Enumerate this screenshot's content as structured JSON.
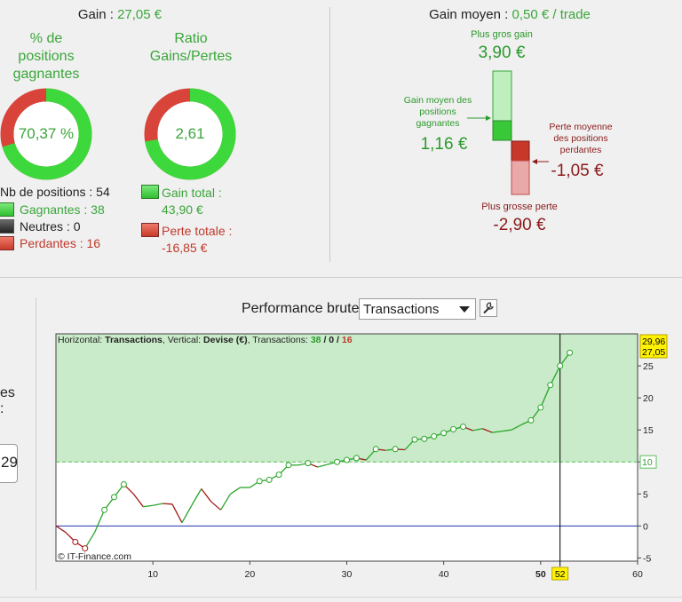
{
  "summary": {
    "gain_label": "Gain :",
    "gain_value": "27,05 €",
    "pct_title": "% de positions gagnantes",
    "pct_value": "70,37 %",
    "pct_fraction": 0.7037,
    "ratio_title": "Ratio Gains/Pertes",
    "ratio_value": "2,61",
    "ratio_fraction": 0.7229,
    "nb_positions": "Nb de positions : 54",
    "gagnantes": "Gagnantes : 38",
    "neutres": "Neutres : 0",
    "perdantes": "Perdantes : 16",
    "gain_total_label": "Gain total :",
    "gain_total_value": "43,90 €",
    "perte_totale_label": "Perte totale :",
    "perte_totale_value": "-16,85 €"
  },
  "average": {
    "title_label": "Gain moyen :",
    "title_value": "0,50 € / trade",
    "best_label": "Plus gros gain",
    "best_value": "3,90 €",
    "avg_gain_label_1": "Gain moyen des",
    "avg_gain_label_2": "positions",
    "avg_gain_label_3": "gagnantes",
    "avg_gain_value": "1,16 €",
    "avg_loss_label_1": "Perte moyenne",
    "avg_loss_label_2": "des positions",
    "avg_loss_label_3": "perdantes",
    "avg_loss_value": "-1,05 €",
    "worst_label": "Plus grosse perte",
    "worst_value": "-2,90 €"
  },
  "performance": {
    "title": "Performance brute",
    "selected": "Transactions",
    "left_text_1": "es",
    "left_text_2": ":",
    "left_input": "29"
  },
  "chart_data": {
    "type": "line",
    "info_h_label": "Horizontal:",
    "info_h_value": "Transactions",
    "info_v_label": ", Vertical:",
    "info_v_value": "Devise (€)",
    "info_t_label": ", Transactions:",
    "info_wins": "38",
    "info_sep1": "/",
    "info_neutral": "0",
    "info_sep2": "/",
    "info_losses": "16",
    "watermark": "© IT-Finance.com",
    "xlim": [
      0,
      60
    ],
    "ylim": [
      -5.5,
      30
    ],
    "x_ticks": [
      10,
      20,
      30,
      40,
      50,
      60
    ],
    "y_ticks": [
      -5,
      0,
      5,
      10,
      15,
      20,
      25
    ],
    "threshold": 10,
    "threshold_label": "10",
    "cursor_x": 52,
    "cursor_label": "52",
    "highlight_tick": "50",
    "y_badge_top": "29,96",
    "y_badge_current": "27,05",
    "points": [
      [
        0,
        0
      ],
      [
        1,
        -1
      ],
      [
        2,
        -2.5
      ],
      [
        3,
        -3.5
      ],
      [
        4,
        -1
      ],
      [
        5,
        2.5
      ],
      [
        6,
        4.5
      ],
      [
        7,
        6.5
      ],
      [
        8,
        5
      ],
      [
        9,
        3
      ],
      [
        10,
        3.2
      ],
      [
        11,
        3.5
      ],
      [
        12,
        3.4
      ],
      [
        13,
        0.5
      ],
      [
        14,
        3.2
      ],
      [
        15,
        5.8
      ],
      [
        16,
        3.8
      ],
      [
        17,
        2.5
      ],
      [
        18,
        5
      ],
      [
        19,
        6
      ],
      [
        20,
        6
      ],
      [
        21,
        7
      ],
      [
        22,
        7.2
      ],
      [
        23,
        8
      ],
      [
        24,
        9.5
      ],
      [
        25,
        9.5
      ],
      [
        26,
        9.8
      ],
      [
        27,
        9.2
      ],
      [
        28,
        9.6
      ],
      [
        29,
        10
      ],
      [
        30,
        10.3
      ],
      [
        31,
        10.6
      ],
      [
        32,
        10.3
      ],
      [
        33,
        12
      ],
      [
        34,
        11.8
      ],
      [
        35,
        12
      ],
      [
        36,
        11.9
      ],
      [
        37,
        13.5
      ],
      [
        38,
        13.6
      ],
      [
        39,
        14
      ],
      [
        40,
        14.5
      ],
      [
        41,
        15.1
      ],
      [
        42,
        15.5
      ],
      [
        43,
        14.9
      ],
      [
        44,
        15.2
      ],
      [
        45,
        14.6
      ],
      [
        46,
        14.8
      ],
      [
        47,
        15
      ],
      [
        48,
        15.8
      ],
      [
        49,
        16.5
      ],
      [
        50,
        18.5
      ],
      [
        51,
        22
      ],
      [
        52,
        25
      ],
      [
        53,
        27.05
      ]
    ],
    "marker_indices": [
      2,
      3,
      5,
      6,
      7,
      21,
      22,
      23,
      24,
      26,
      29,
      30,
      31,
      33,
      35,
      37,
      38,
      39,
      40,
      41,
      42,
      49,
      50,
      51,
      52,
      53
    ],
    "colors": {
      "up": "#2aa52a",
      "down": "#a21a1a",
      "area": "#c9ebc9",
      "zero_line": "#2233aa",
      "threshold": "#5cbf5c"
    }
  }
}
